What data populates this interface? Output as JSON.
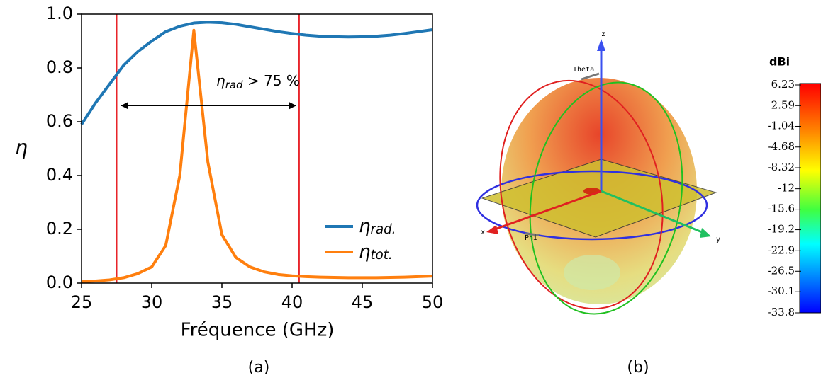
{
  "chart_data": {
    "type": "line",
    "xlabel": "Fréquence (GHz)",
    "ylabel": "η",
    "x": [
      25,
      26,
      27,
      28,
      29,
      30,
      31,
      32,
      33,
      34,
      35,
      36,
      37,
      38,
      39,
      40,
      41,
      42,
      43,
      44,
      45,
      46,
      47,
      48,
      49,
      50
    ],
    "series": [
      {
        "name": "ηrad.",
        "color": "#1f77b4",
        "values": [
          0.59,
          0.67,
          0.74,
          0.81,
          0.86,
          0.9,
          0.935,
          0.955,
          0.967,
          0.97,
          0.968,
          0.962,
          0.953,
          0.944,
          0.935,
          0.928,
          0.922,
          0.918,
          0.916,
          0.915,
          0.916,
          0.918,
          0.922,
          0.928,
          0.935,
          0.942
        ]
      },
      {
        "name": "ηtot.",
        "color": "#ff7f0e",
        "values": [
          0.005,
          0.008,
          0.012,
          0.02,
          0.035,
          0.06,
          0.14,
          0.4,
          0.94,
          0.45,
          0.18,
          0.095,
          0.06,
          0.042,
          0.032,
          0.027,
          0.024,
          0.022,
          0.021,
          0.02,
          0.02,
          0.02,
          0.021,
          0.022,
          0.024,
          0.026
        ]
      }
    ],
    "xlim": [
      25,
      50
    ],
    "xticks": [
      25,
      30,
      35,
      40,
      45,
      50
    ],
    "ylim": [
      0,
      1
    ],
    "yticks": [
      {
        "value": 0,
        "label": "0.0"
      },
      0.2,
      0.4,
      0.6,
      0.8,
      {
        "value": 1,
        "label": "1.0"
      }
    ],
    "vlines": [
      27.5,
      40.5
    ],
    "vline_color": "#e8242a",
    "arrow": {
      "x": [
        27.8,
        40.3
      ],
      "y": 0.66
    },
    "annotation": "ηrad > 75 %",
    "legend": "lower right",
    "caption": "(a)"
  },
  "panel_b": {
    "caption": "(b)",
    "colorbar_title": "dBi",
    "colorbar_ticks": [
      6.23,
      2.59,
      -1.04,
      -4.68,
      -8.32,
      -12,
      -15.6,
      -19.2,
      -22.9,
      -26.5,
      -30.1,
      -33.8
    ],
    "axis_labels": {
      "z": "z",
      "x": "x",
      "y": "y",
      "theta": "Theta",
      "phi": "Phi"
    }
  }
}
